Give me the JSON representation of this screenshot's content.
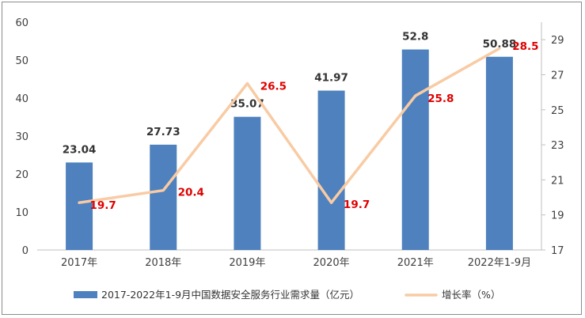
{
  "chart_data": {
    "type": "bar",
    "categories": [
      "2017年",
      "2018年",
      "2019年",
      "2020年",
      "2021年",
      "2022年1-9月"
    ],
    "series": [
      {
        "name": "2017-2022年1-9月中国数据安全服务行业需求量（亿元）",
        "type": "bar",
        "axis": "left",
        "color": "#4e81bd",
        "values": [
          23.04,
          27.73,
          35.07,
          41.97,
          52.8,
          50.88
        ],
        "labels": [
          "23.04",
          "27.73",
          "35.07",
          "41.97",
          "52.8",
          "50.88"
        ]
      },
      {
        "name": "增长率（%）",
        "type": "line",
        "axis": "right",
        "color": "#f8cba4",
        "label_color": "#e00000",
        "values": [
          19.7,
          20.4,
          26.5,
          19.7,
          25.8,
          28.5
        ],
        "labels": [
          "19.7",
          "20.4",
          "26.5",
          "19.7",
          "25.8",
          "28.5"
        ]
      }
    ],
    "y_left": {
      "min": 0,
      "max": 60,
      "ticks": [
        "0",
        "10",
        "20",
        "30",
        "40",
        "50",
        "60"
      ]
    },
    "y_right": {
      "min": 17,
      "max": 30,
      "ticks": [
        "17",
        "19",
        "21",
        "23",
        "25",
        "27",
        "29"
      ]
    },
    "grid": false,
    "legend_position": "bottom"
  }
}
